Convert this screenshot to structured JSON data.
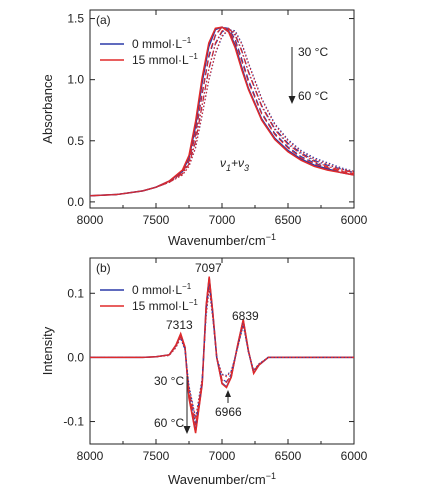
{
  "chart_data": [
    {
      "type": "line",
      "panel_label": "(a)",
      "xlabel": "Wavenumber/cm",
      "xlabel_sup": "−1",
      "ylabel": "Absorbance",
      "xlim": [
        8000,
        6000
      ],
      "ylim": [
        -0.05,
        1.57
      ],
      "xticks": [
        "8000",
        "7500",
        "7000",
        "6500",
        "6000"
      ],
      "yticks": [
        "0.0",
        "0.5",
        "1.0",
        "1.5"
      ],
      "legend": [
        {
          "label": "0  mmol·L",
          "sup": "−1",
          "color": "#2b3aa8"
        },
        {
          "label": "15 mmol·L",
          "sup": "−1",
          "color": "#e02a2a"
        }
      ],
      "annotation_high": "30 °C",
      "annotation_low": "60 °C",
      "band_label": "ν1+ν3",
      "series": [
        {
          "style": "solid",
          "color": "#2b3aa8",
          "x": [
            8000,
            7800,
            7600,
            7500,
            7400,
            7300,
            7250,
            7200,
            7150,
            7100,
            7050,
            7000,
            6950,
            6900,
            6850,
            6800,
            6700,
            6600,
            6500,
            6400,
            6300,
            6200,
            6100,
            6000
          ],
          "y": [
            0.05,
            0.06,
            0.09,
            0.12,
            0.17,
            0.25,
            0.36,
            0.62,
            0.98,
            1.27,
            1.41,
            1.43,
            1.4,
            1.28,
            1.1,
            0.93,
            0.68,
            0.52,
            0.42,
            0.35,
            0.3,
            0.27,
            0.24,
            0.22
          ]
        },
        {
          "style": "solid",
          "color": "#e02a2a",
          "x": [
            8000,
            7800,
            7600,
            7500,
            7400,
            7300,
            7250,
            7200,
            7150,
            7100,
            7050,
            7000,
            6950,
            6900,
            6850,
            6800,
            6700,
            6600,
            6500,
            6400,
            6300,
            6200,
            6100,
            6000
          ],
          "y": [
            0.05,
            0.06,
            0.09,
            0.12,
            0.17,
            0.26,
            0.38,
            0.66,
            1.02,
            1.3,
            1.42,
            1.43,
            1.39,
            1.26,
            1.08,
            0.92,
            0.67,
            0.51,
            0.41,
            0.34,
            0.29,
            0.26,
            0.24,
            0.22
          ]
        },
        {
          "style": "dash",
          "color": "#2b3aa8",
          "x": [
            8000,
            7800,
            7600,
            7500,
            7400,
            7300,
            7250,
            7200,
            7150,
            7100,
            7050,
            7000,
            6950,
            6900,
            6850,
            6800,
            6700,
            6600,
            6500,
            6400,
            6300,
            6200,
            6100,
            6000
          ],
          "y": [
            0.05,
            0.06,
            0.09,
            0.12,
            0.16,
            0.24,
            0.33,
            0.55,
            0.88,
            1.18,
            1.36,
            1.43,
            1.42,
            1.33,
            1.17,
            1.0,
            0.73,
            0.56,
            0.45,
            0.37,
            0.32,
            0.28,
            0.25,
            0.23
          ]
        },
        {
          "style": "dash",
          "color": "#e02a2a",
          "x": [
            8000,
            7800,
            7600,
            7500,
            7400,
            7300,
            7250,
            7200,
            7150,
            7100,
            7050,
            7000,
            6950,
            6900,
            6850,
            6800,
            6700,
            6600,
            6500,
            6400,
            6300,
            6200,
            6100,
            6000
          ],
          "y": [
            0.05,
            0.06,
            0.09,
            0.12,
            0.16,
            0.24,
            0.34,
            0.57,
            0.9,
            1.2,
            1.37,
            1.43,
            1.41,
            1.31,
            1.15,
            0.98,
            0.72,
            0.55,
            0.44,
            0.36,
            0.31,
            0.28,
            0.25,
            0.23
          ]
        },
        {
          "style": "dashdot",
          "color": "#2b3aa8",
          "x": [
            8000,
            7800,
            7600,
            7500,
            7400,
            7300,
            7250,
            7200,
            7150,
            7100,
            7050,
            7000,
            6950,
            6900,
            6850,
            6800,
            6700,
            6600,
            6500,
            6400,
            6300,
            6200,
            6100,
            6000
          ],
          "y": [
            0.05,
            0.06,
            0.09,
            0.12,
            0.16,
            0.23,
            0.31,
            0.49,
            0.79,
            1.08,
            1.29,
            1.39,
            1.42,
            1.37,
            1.24,
            1.07,
            0.79,
            0.6,
            0.48,
            0.4,
            0.34,
            0.3,
            0.27,
            0.24
          ]
        },
        {
          "style": "dashdot",
          "color": "#e02a2a",
          "x": [
            8000,
            7800,
            7600,
            7500,
            7400,
            7300,
            7250,
            7200,
            7150,
            7100,
            7050,
            7000,
            6950,
            6900,
            6850,
            6800,
            6700,
            6600,
            6500,
            6400,
            6300,
            6200,
            6100,
            6000
          ],
          "y": [
            0.05,
            0.06,
            0.09,
            0.12,
            0.16,
            0.23,
            0.31,
            0.5,
            0.8,
            1.09,
            1.3,
            1.4,
            1.42,
            1.36,
            1.23,
            1.06,
            0.78,
            0.59,
            0.47,
            0.39,
            0.33,
            0.29,
            0.26,
            0.24
          ]
        },
        {
          "style": "dot",
          "color": "#2b3aa8",
          "x": [
            8000,
            7800,
            7600,
            7500,
            7400,
            7300,
            7250,
            7200,
            7150,
            7100,
            7050,
            7000,
            6950,
            6900,
            6850,
            6800,
            6700,
            6600,
            6500,
            6400,
            6300,
            6200,
            6100,
            6000
          ],
          "y": [
            0.05,
            0.06,
            0.09,
            0.12,
            0.16,
            0.22,
            0.29,
            0.44,
            0.71,
            0.99,
            1.21,
            1.35,
            1.41,
            1.4,
            1.3,
            1.14,
            0.85,
            0.64,
            0.51,
            0.42,
            0.36,
            0.32,
            0.28,
            0.25
          ]
        },
        {
          "style": "dot",
          "color": "#e02a2a",
          "x": [
            8000,
            7800,
            7600,
            7500,
            7400,
            7300,
            7250,
            7200,
            7150,
            7100,
            7050,
            7000,
            6950,
            6900,
            6850,
            6800,
            6700,
            6600,
            6500,
            6400,
            6300,
            6200,
            6100,
            6000
          ],
          "y": [
            0.05,
            0.06,
            0.09,
            0.12,
            0.16,
            0.22,
            0.29,
            0.45,
            0.72,
            1.0,
            1.22,
            1.36,
            1.41,
            1.39,
            1.29,
            1.13,
            0.84,
            0.63,
            0.5,
            0.41,
            0.35,
            0.31,
            0.27,
            0.25
          ]
        }
      ]
    },
    {
      "type": "line",
      "panel_label": "(b)",
      "xlabel": "Wavenumber/cm",
      "xlabel_sup": "−1",
      "ylabel": "Intensity",
      "xlim": [
        8000,
        6000
      ],
      "ylim": [
        -0.135,
        0.155
      ],
      "xticks": [
        "8000",
        "7500",
        "7000",
        "6500",
        "6000"
      ],
      "yticks": [
        "-0.1",
        "0.0",
        "0.1"
      ],
      "legend": [
        {
          "label": "0   mmol·L",
          "sup": "−1",
          "color": "#2b3aa8"
        },
        {
          "label": "15 mmol·L",
          "sup": "−1",
          "color": "#e02a2a"
        }
      ],
      "peak_labels": [
        "7313",
        "7097",
        "6839",
        "6966"
      ],
      "annotation_high": "30 °C",
      "annotation_low": "60 °C",
      "series": [
        {
          "style": "solid",
          "color": "#2b3aa8",
          "x": [
            8000,
            7600,
            7500,
            7400,
            7350,
            7313,
            7280,
            7250,
            7200,
            7150,
            7120,
            7097,
            7070,
            7040,
            7000,
            6966,
            6930,
            6880,
            6839,
            6800,
            6760,
            6720,
            6650,
            6500,
            6300,
            6000
          ],
          "y": [
            0,
            0,
            0.001,
            0.004,
            0.018,
            0.036,
            0.015,
            -0.062,
            -0.116,
            -0.04,
            0.08,
            0.124,
            0.07,
            0.0,
            -0.04,
            -0.046,
            -0.03,
            0.02,
            0.058,
            0.01,
            -0.024,
            -0.012,
            0.0,
            0.0,
            0.0,
            0.0
          ]
        },
        {
          "style": "solid",
          "color": "#e02a2a",
          "x": [
            8000,
            7600,
            7500,
            7400,
            7350,
            7313,
            7280,
            7250,
            7200,
            7150,
            7120,
            7097,
            7070,
            7040,
            7000,
            6966,
            6930,
            6880,
            6839,
            6800,
            6760,
            6720,
            6650,
            6500,
            6300,
            6000
          ],
          "y": [
            0,
            0,
            0.001,
            0.004,
            0.019,
            0.037,
            0.016,
            -0.064,
            -0.118,
            -0.042,
            0.081,
            0.126,
            0.071,
            0.0,
            -0.041,
            -0.047,
            -0.031,
            0.021,
            0.059,
            0.011,
            -0.025,
            -0.012,
            0.0,
            0.0,
            0.0,
            0.0
          ]
        },
        {
          "style": "dash",
          "color": "#2b3aa8",
          "x": [
            8000,
            7600,
            7500,
            7400,
            7350,
            7313,
            7280,
            7250,
            7200,
            7150,
            7120,
            7097,
            7070,
            7040,
            7000,
            6966,
            6930,
            6880,
            6839,
            6800,
            6760,
            6720,
            6650,
            6500,
            6300,
            6000
          ],
          "y": [
            0,
            0,
            0.001,
            0.004,
            0.017,
            0.033,
            0.013,
            -0.052,
            -0.104,
            -0.036,
            0.072,
            0.116,
            0.066,
            0.0,
            -0.034,
            -0.038,
            -0.026,
            0.018,
            0.054,
            0.009,
            -0.022,
            -0.011,
            0.0,
            0.0,
            0.0,
            0.0
          ]
        },
        {
          "style": "dash",
          "color": "#e02a2a",
          "x": [
            8000,
            7600,
            7500,
            7400,
            7350,
            7313,
            7280,
            7250,
            7200,
            7150,
            7120,
            7097,
            7070,
            7040,
            7000,
            6966,
            6930,
            6880,
            6839,
            6800,
            6760,
            6720,
            6650,
            6500,
            6300,
            6000
          ],
          "y": [
            0,
            0,
            0.001,
            0.004,
            0.017,
            0.034,
            0.014,
            -0.054,
            -0.106,
            -0.037,
            0.073,
            0.118,
            0.067,
            0.0,
            -0.035,
            -0.039,
            -0.027,
            0.018,
            0.055,
            0.009,
            -0.022,
            -0.011,
            0.0,
            0.0,
            0.0,
            0.0
          ]
        },
        {
          "style": "dot",
          "color": "#2b3aa8",
          "x": [
            8000,
            7600,
            7500,
            7400,
            7350,
            7313,
            7280,
            7250,
            7200,
            7150,
            7120,
            7097,
            7070,
            7040,
            7000,
            6966,
            6930,
            6880,
            6839,
            6800,
            6760,
            6720,
            6650,
            6500,
            6300,
            6000
          ],
          "y": [
            0,
            0,
            0.001,
            0.003,
            0.015,
            0.03,
            0.011,
            -0.044,
            -0.094,
            -0.032,
            0.064,
            0.108,
            0.061,
            0.0,
            -0.026,
            -0.028,
            -0.021,
            0.016,
            0.05,
            0.008,
            -0.02,
            -0.01,
            0.0,
            0.0,
            0.0,
            0.0
          ]
        },
        {
          "style": "dot",
          "color": "#e02a2a",
          "x": [
            8000,
            7600,
            7500,
            7400,
            7350,
            7313,
            7280,
            7250,
            7200,
            7150,
            7120,
            7097,
            7070,
            7040,
            7000,
            6966,
            6930,
            6880,
            6839,
            6800,
            6760,
            6720,
            6650,
            6500,
            6300,
            6000
          ],
          "y": [
            0,
            0,
            0.001,
            0.003,
            0.015,
            0.031,
            0.012,
            -0.046,
            -0.096,
            -0.033,
            0.065,
            0.11,
            0.062,
            0.0,
            -0.027,
            -0.03,
            -0.022,
            0.016,
            0.051,
            0.008,
            -0.02,
            -0.01,
            0.0,
            0.0,
            0.0,
            0.0
          ]
        }
      ]
    }
  ]
}
